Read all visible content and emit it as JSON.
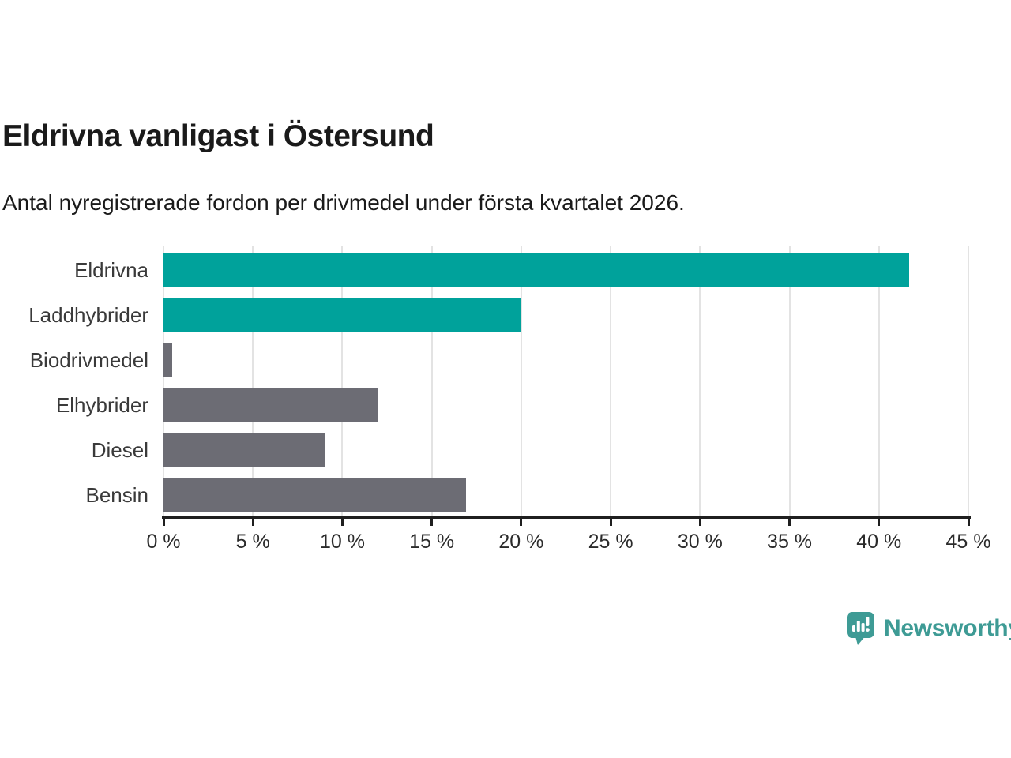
{
  "header": {
    "title": "Eldrivna vanligast i Östersund",
    "subtitle": "Antal nyregistrerade fordon per drivmedel under första kvartalet 2026."
  },
  "chart_data": {
    "type": "bar",
    "orientation": "horizontal",
    "title": "Eldrivna vanligast i Östersund",
    "subtitle": "Antal nyregistrerade fordon per drivmedel under första kvartalet 2026.",
    "categories": [
      "Eldrivna",
      "Laddhybrider",
      "Biodrivmedel",
      "Elhybrider",
      "Diesel",
      "Bensin"
    ],
    "values": [
      41.7,
      20.0,
      0.5,
      12.0,
      9.0,
      16.9
    ],
    "unit": "%",
    "bar_colors": [
      "#00a29b",
      "#00a29b",
      "#6c6c74",
      "#6c6c74",
      "#6c6c74",
      "#6c6c74"
    ],
    "highlight_color": "#00a29b",
    "default_color": "#6c6c74",
    "xlim": [
      0,
      45
    ],
    "x_ticks": [
      0,
      5,
      10,
      15,
      20,
      25,
      30,
      35,
      40,
      45
    ],
    "x_tick_labels": [
      "0 %",
      "5 %",
      "10 %",
      "15 %",
      "20 %",
      "25 %",
      "30 %",
      "35 %",
      "40 %",
      "45 %"
    ],
    "xlabel": "",
    "ylabel": "",
    "grid": true,
    "legend": false,
    "gridline_color": "#e3e3e3",
    "axis_color": "#1f1f1f",
    "tick_label_color": "#2b2b2b",
    "category_label_color": "#3a3a3a"
  },
  "branding": {
    "name": "Newsworthy",
    "color": "#3e9b95"
  }
}
